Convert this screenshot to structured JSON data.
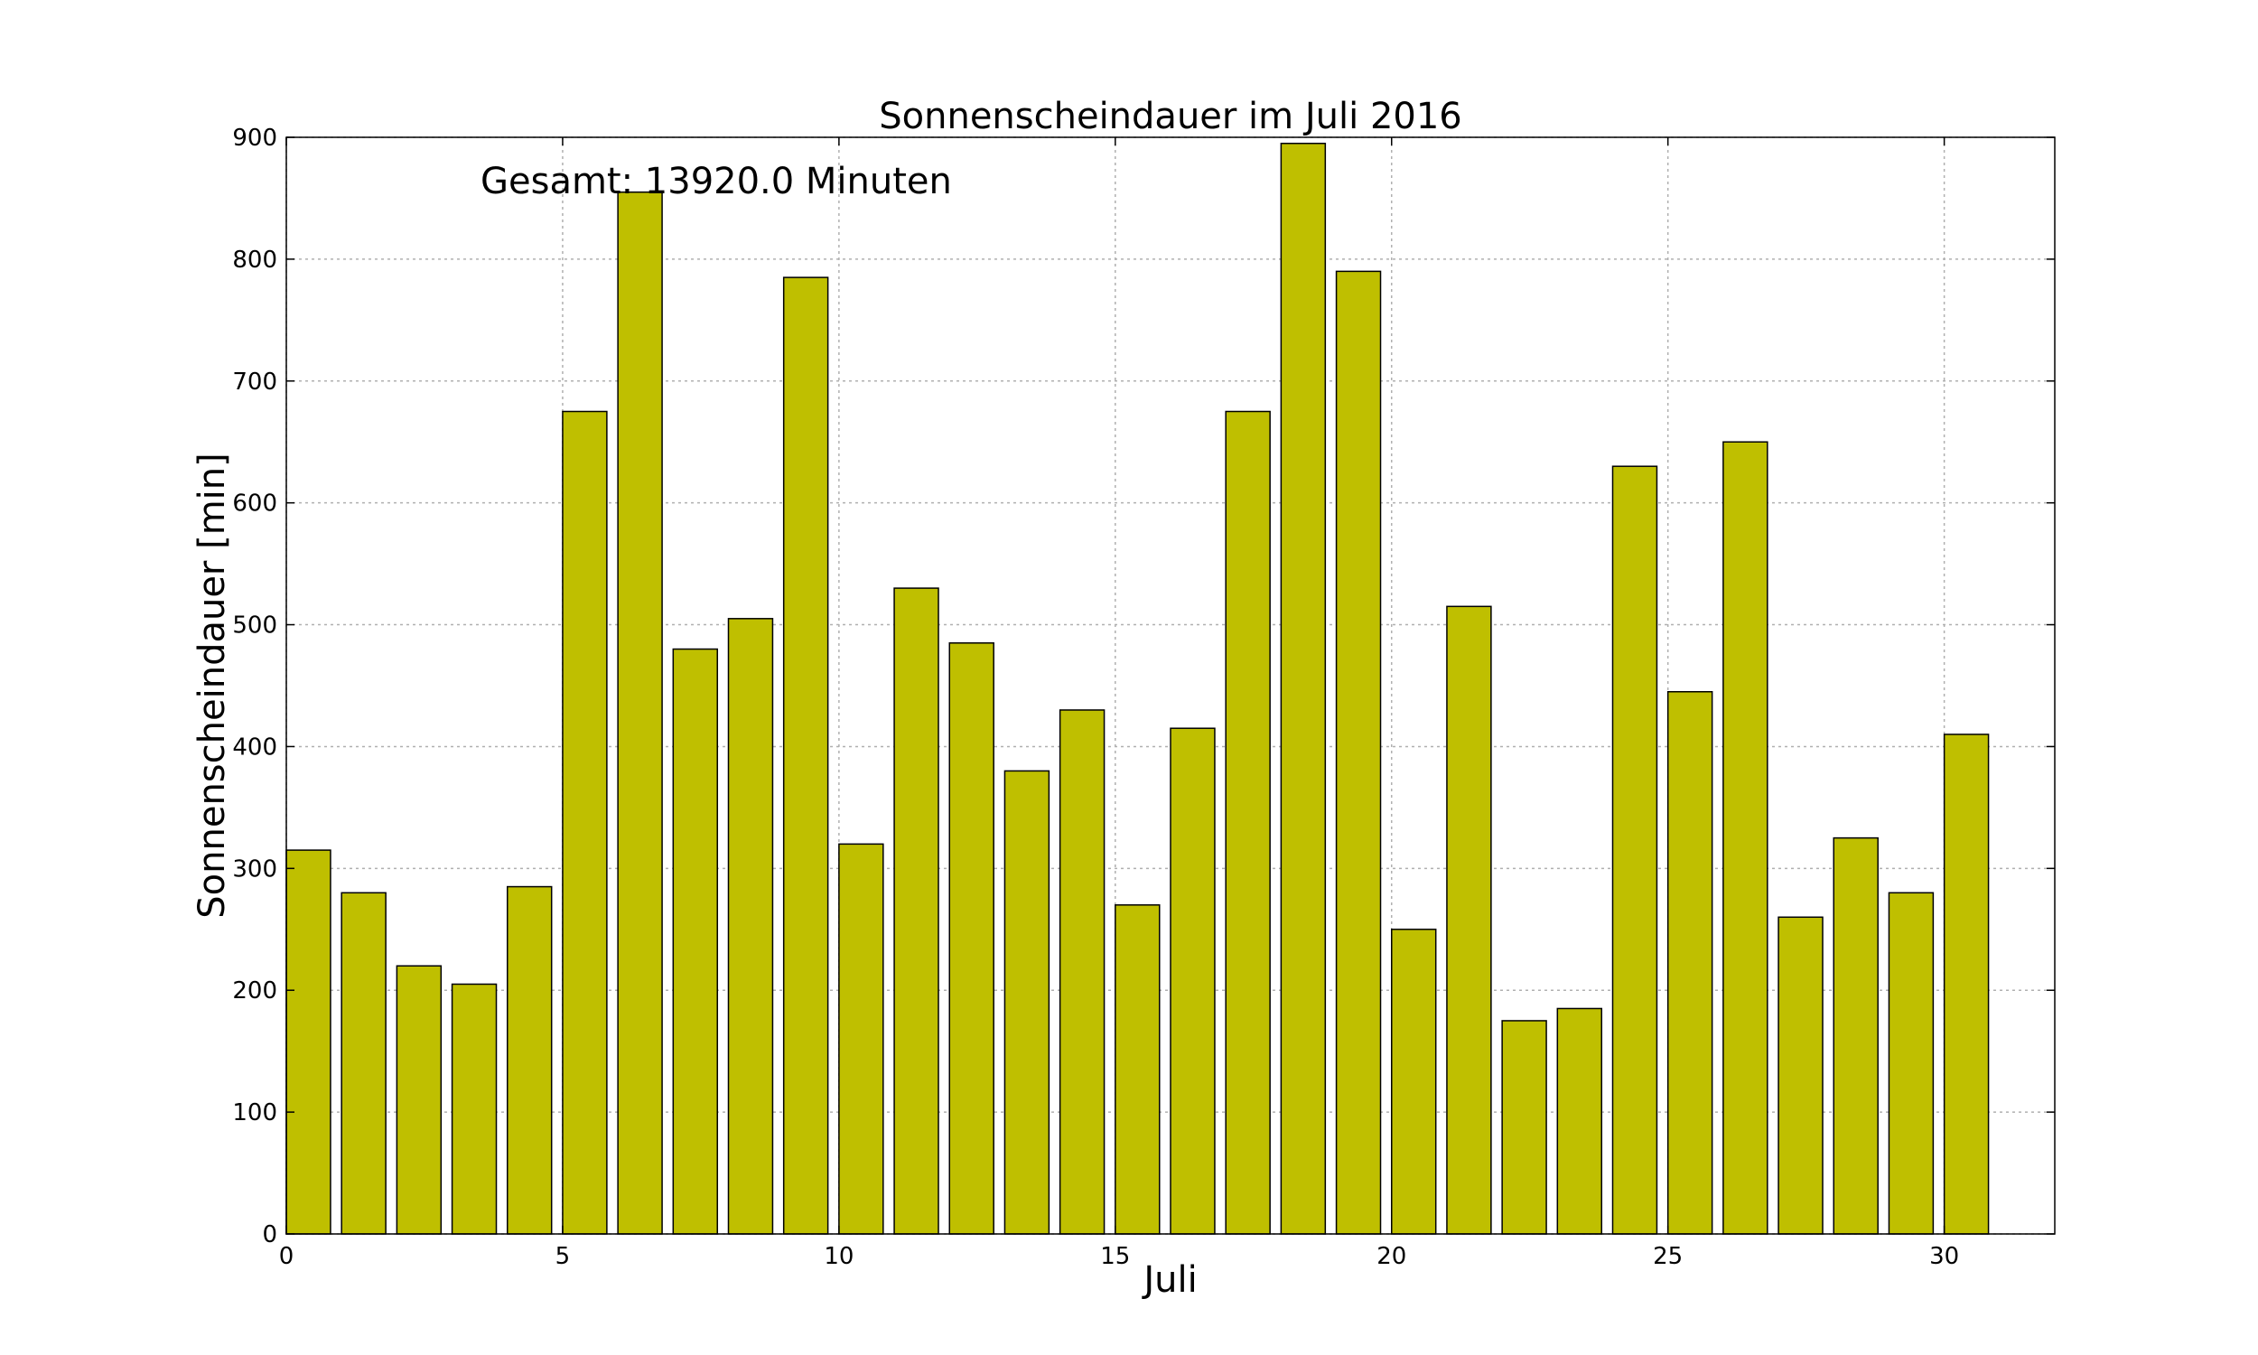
{
  "chart_data": {
    "type": "bar",
    "title": "Sonnenscheindauer im Juli 2016",
    "xlabel": "Juli",
    "ylabel": "Sonnenscheindauer [min]",
    "annotation": "Gesamt: 13920.0 Minuten",
    "x": [
      0,
      1,
      2,
      3,
      4,
      5,
      6,
      7,
      8,
      9,
      10,
      11,
      12,
      13,
      14,
      15,
      16,
      17,
      18,
      19,
      20,
      21,
      22,
      23,
      24,
      25,
      26,
      27,
      28,
      29,
      30
    ],
    "values": [
      315,
      280,
      220,
      205,
      285,
      675,
      855,
      480,
      505,
      785,
      320,
      530,
      485,
      380,
      430,
      270,
      415,
      675,
      895,
      790,
      250,
      515,
      175,
      185,
      630,
      445,
      650,
      260,
      325,
      280,
      410
    ],
    "xlim": [
      0,
      32
    ],
    "ylim": [
      0,
      900
    ],
    "xticks": [
      0,
      5,
      10,
      15,
      20,
      25,
      30
    ],
    "yticks": [
      0,
      100,
      200,
      300,
      400,
      500,
      600,
      700,
      800,
      900
    ],
    "bar_color": "#bfbf00",
    "edge_color": "#000000",
    "grid": true
  }
}
